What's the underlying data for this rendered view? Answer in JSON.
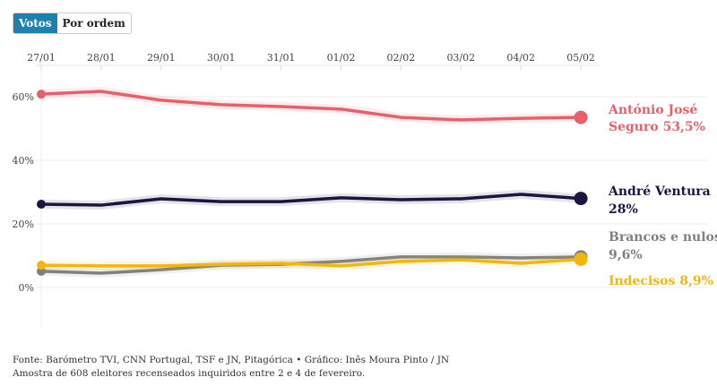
{
  "toggle": {
    "active": "Votos",
    "inactive": "Por ordem"
  },
  "chart_data": {
    "type": "line",
    "x": [
      "27/01",
      "28/01",
      "29/01",
      "30/01",
      "31/01",
      "01/02",
      "02/02",
      "03/02",
      "04/02",
      "05/02"
    ],
    "yticks": [
      "0%",
      "20%",
      "40%",
      "60%"
    ],
    "ylim": [
      -12,
      66
    ],
    "grid": true,
    "series": [
      {
        "name": "António José Seguro",
        "label_lines": [
          "António José",
          "Seguro 53,5%"
        ],
        "color": "#e8606a",
        "values": [
          60.8,
          61.7,
          58.9,
          57.5,
          56.9,
          56.1,
          53.5,
          52.7,
          53.2,
          53.5
        ]
      },
      {
        "name": "André Ventura",
        "label_lines": [
          "André Ventura",
          "28%"
        ],
        "color": "#1a1640",
        "values": [
          26.2,
          25.9,
          27.9,
          27.0,
          27.0,
          28.2,
          27.6,
          27.9,
          29.3,
          28.0
        ]
      },
      {
        "name": "Brancos e nulos",
        "label_lines": [
          "Brancos e nulos",
          "9,6%"
        ],
        "color": "#808080",
        "values": [
          5.1,
          4.5,
          5.6,
          7.0,
          7.3,
          8.2,
          9.6,
          9.6,
          9.3,
          9.6
        ]
      },
      {
        "name": "Indecisos",
        "label_lines": [
          "Indecisos 8,9%"
        ],
        "color": "#f2b70f",
        "values": [
          7.0,
          6.8,
          6.8,
          7.3,
          7.6,
          6.8,
          8.2,
          8.7,
          7.6,
          8.9
        ]
      }
    ]
  },
  "footer": {
    "source": "Fonte: Barómetro TVI, CNN Portugal, TSF e JN, Pitagórica • Gráfico: Inês Moura Pinto / JN",
    "note": "Amostra de 608 eleitores recenseados inquiridos entre 2 e 4 de fevereiro."
  }
}
